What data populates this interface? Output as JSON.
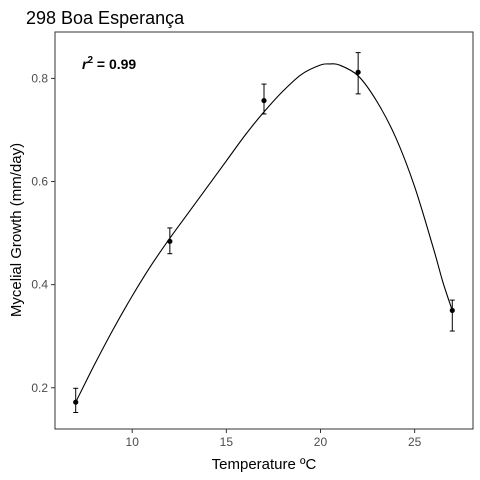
{
  "chart_data": {
    "type": "scatter",
    "title": "298 Boa Esperança",
    "xlabel": "Temperature ºC",
    "ylabel": "Mycelial Growth (mm/day)",
    "xlim": [
      5.9,
      28.1
    ],
    "ylim": [
      0.12,
      0.89
    ],
    "x_ticks": [
      10,
      15,
      20,
      25
    ],
    "y_ticks": [
      0.2,
      0.4,
      0.6,
      0.8
    ],
    "x_tick_labels": [
      "10",
      "15",
      "20",
      "25"
    ],
    "y_tick_labels": [
      "0.2",
      "0.4",
      "0.6",
      "0.8"
    ],
    "grid": false,
    "annotation": {
      "r_label": "r",
      "r_power": "2",
      "r_value": " = 0.99"
    },
    "points": [
      {
        "x": 7,
        "y": 0.172,
        "err_low": 0.152,
        "err_high": 0.199
      },
      {
        "x": 12,
        "y": 0.484,
        "err_low": 0.46,
        "err_high": 0.51
      },
      {
        "x": 17,
        "y": 0.757,
        "err_low": 0.731,
        "err_high": 0.789
      },
      {
        "x": 22,
        "y": 0.812,
        "err_low": 0.77,
        "err_high": 0.85
      },
      {
        "x": 27,
        "y": 0.35,
        "err_low": 0.31,
        "err_high": 0.37
      }
    ],
    "fit_curve": {
      "x": [
        7,
        8,
        9,
        10,
        11,
        12,
        13,
        14,
        15,
        16,
        17,
        18,
        19,
        20,
        20.5,
        21,
        22,
        23,
        24,
        25,
        26,
        26.5,
        27
      ],
      "y": [
        0.172,
        0.245,
        0.314,
        0.378,
        0.437,
        0.49,
        0.54,
        0.59,
        0.64,
        0.69,
        0.735,
        0.775,
        0.808,
        0.826,
        0.828,
        0.826,
        0.805,
        0.755,
        0.685,
        0.59,
        0.47,
        0.405,
        0.35
      ]
    }
  }
}
